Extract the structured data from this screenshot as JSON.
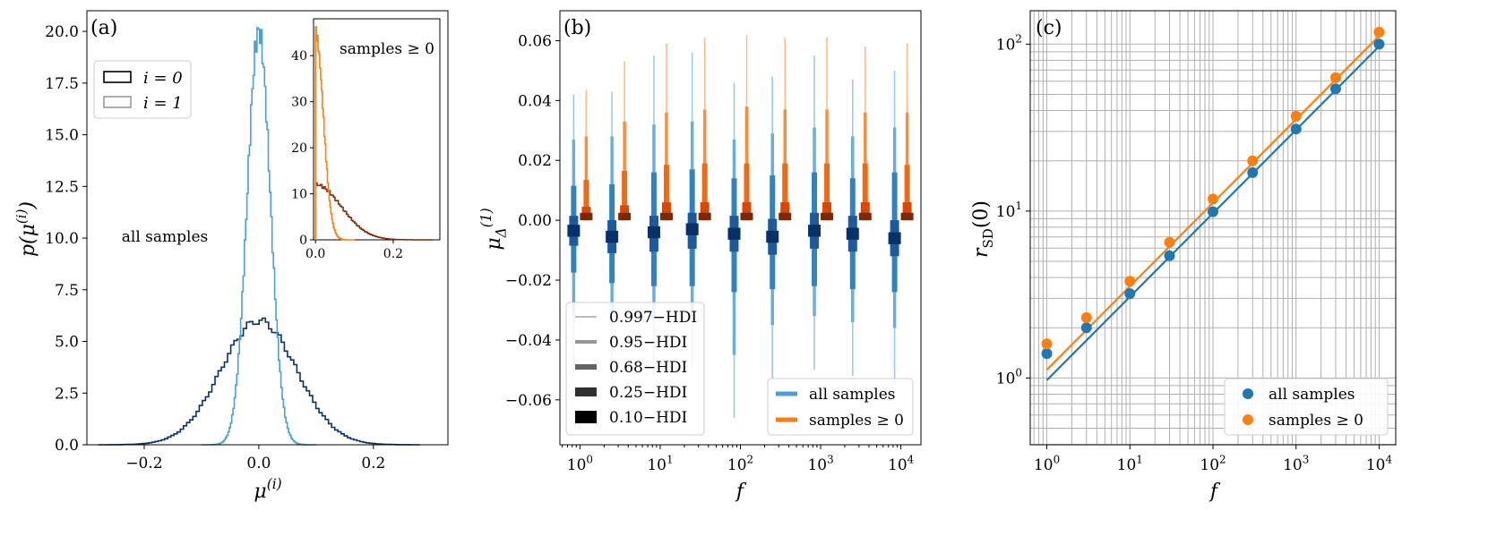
{
  "colors": {
    "all": "#1f77b4",
    "all_light": "#4a9fd4",
    "nonneg": "#ff7f0e",
    "nonneg_i0": "#7f2704",
    "navy": "#08306b",
    "grid": "#b0b0b0"
  },
  "chart_data": [
    {
      "type": "histogram",
      "panel": "(a)",
      "xlabel": "μ(i)",
      "ylabel": "p(μ(i))",
      "xlim": [
        -0.3,
        0.33
      ],
      "ylim": [
        0,
        21
      ],
      "xticks": [
        "−0.2",
        "0.0",
        "0.2"
      ],
      "xtick_values": [
        -0.2,
        0.0,
        0.2
      ],
      "yticks": [
        "0.0",
        "2.5",
        "5.0",
        "7.5",
        "10.0",
        "12.5",
        "15.0",
        "17.5",
        "20.0"
      ],
      "ytick_values": [
        0,
        2.5,
        5,
        7.5,
        10,
        12.5,
        15,
        17.5,
        20
      ],
      "annotation": "all samples",
      "legend": {
        "entries": [
          "i = 0",
          "i = 1"
        ],
        "placement": "upper-left"
      },
      "series": [
        {
          "name": "i = 0",
          "distribution": "normal",
          "mean": 0.0,
          "sd": 0.066,
          "peak": 6.0
        },
        {
          "name": "i = 1",
          "distribution": "normal",
          "mean": 0.0,
          "sd": 0.02,
          "peak": 20.0
        }
      ],
      "inset": {
        "title": "samples ≥ 0",
        "xlim": [
          -0.005,
          0.32
        ],
        "ylim": [
          0,
          48
        ],
        "xticks": [
          "0.0",
          "0.2"
        ],
        "xtick_values": [
          0.0,
          0.2
        ],
        "yticks": [
          "0",
          "10",
          "20",
          "30",
          "40"
        ],
        "ytick_values": [
          0,
          10,
          20,
          30,
          40
        ],
        "series": [
          {
            "name": "i = 0",
            "distribution": "half-normal",
            "sd": 0.066,
            "peak": 12.0
          },
          {
            "name": "i = 1",
            "distribution": "half-normal",
            "sd": 0.02,
            "peak": 45.0
          }
        ]
      }
    },
    {
      "type": "interval",
      "panel": "(b)",
      "xlabel": "f",
      "ylabel": "μΔ(1)",
      "xscale": "log",
      "xlim_log10": [
        -0.25,
        4.25
      ],
      "ylim": [
        -0.075,
        0.07
      ],
      "xticks": [
        {
          "base": "10",
          "exp": "0",
          "log": 0
        },
        {
          "base": "10",
          "exp": "1",
          "log": 1
        },
        {
          "base": "10",
          "exp": "2",
          "log": 2
        },
        {
          "base": "10",
          "exp": "3",
          "log": 3
        },
        {
          "base": "10",
          "exp": "4",
          "log": 4
        }
      ],
      "yticks": [
        "−0.06",
        "−0.04",
        "−0.02",
        "0.00",
        "0.02",
        "0.04",
        "0.06"
      ],
      "ytick_values": [
        -0.06,
        -0.04,
        -0.02,
        0.0,
        0.02,
        0.04,
        0.06
      ],
      "f": [
        1,
        3,
        10,
        30,
        100,
        300,
        1000,
        3000,
        10000
      ],
      "hdi_levels": [
        "0.997−HDI",
        "0.95−HDI",
        "0.68−HDI",
        "0.25−HDI",
        "0.10−HDI"
      ],
      "series": [
        {
          "name": "all samples",
          "center": [
            -0.0035,
            -0.0055,
            -0.004,
            -0.003,
            -0.0045,
            -0.0055,
            -0.0035,
            -0.0045,
            -0.006
          ],
          "hdi997": [
            [
              -0.0505,
              0.042
            ],
            [
              -0.053,
              0.043
            ],
            [
              -0.052,
              0.055
            ],
            [
              -0.05,
              0.056
            ],
            [
              -0.066,
              0.046
            ],
            [
              -0.053,
              0.048
            ],
            [
              -0.05,
              0.055
            ],
            [
              -0.052,
              0.047
            ],
            [
              -0.055,
              0.05
            ]
          ],
          "hdi95": [
            [
              -0.032,
              0.027
            ],
            [
              -0.034,
              0.028
            ],
            [
              -0.033,
              0.032
            ],
            [
              -0.033,
              0.033
            ],
            [
              -0.045,
              0.027
            ],
            [
              -0.035,
              0.029
            ],
            [
              -0.032,
              0.031
            ],
            [
              -0.034,
              0.028
            ],
            [
              -0.036,
              0.031
            ]
          ],
          "hdi68": [
            [
              -0.0175,
              0.0115
            ],
            [
              -0.021,
              0.012
            ],
            [
              -0.022,
              0.016
            ],
            [
              -0.022,
              0.017
            ],
            [
              -0.024,
              0.014
            ],
            [
              -0.023,
              0.015
            ],
            [
              -0.022,
              0.016
            ],
            [
              -0.023,
              0.014
            ],
            [
              -0.024,
              0.016
            ]
          ],
          "hdi25": [
            [
              -0.0085,
              0.0015
            ],
            [
              -0.011,
              0.0
            ],
            [
              -0.0105,
              0.0015
            ],
            [
              -0.0095,
              0.0025
            ],
            [
              -0.0105,
              0.0015
            ],
            [
              -0.0115,
              0.0005
            ],
            [
              -0.0095,
              0.0025
            ],
            [
              -0.0105,
              0.0015
            ],
            [
              -0.012,
              0.0
            ]
          ],
          "hdi10": [
            [
              -0.0055,
              -0.0015
            ],
            [
              -0.0075,
              -0.0035
            ],
            [
              -0.006,
              -0.002
            ],
            [
              -0.005,
              -0.001
            ],
            [
              -0.0065,
              -0.0025
            ],
            [
              -0.0075,
              -0.0035
            ],
            [
              -0.0055,
              -0.0015
            ],
            [
              -0.0065,
              -0.0025
            ],
            [
              -0.008,
              -0.004
            ]
          ]
        },
        {
          "name": "samples ≥ 0",
          "center": [
            0.001,
            0.001,
            0.001,
            0.001,
            0.001,
            0.001,
            0.001,
            0.001,
            0.001
          ],
          "hdi997": [
            [
              0.0,
              0.0435
            ],
            [
              0.0,
              0.053
            ],
            [
              0.0,
              0.059
            ],
            [
              0.0,
              0.061
            ],
            [
              0.0,
              0.062
            ],
            [
              0.0,
              0.061
            ],
            [
              0.0,
              0.061
            ],
            [
              0.0,
              0.058
            ],
            [
              0.0,
              0.059
            ]
          ],
          "hdi95": [
            [
              0.0,
              0.028
            ],
            [
              0.0,
              0.033
            ],
            [
              0.0,
              0.036
            ],
            [
              0.0,
              0.037
            ],
            [
              0.0,
              0.038
            ],
            [
              0.0,
              0.037
            ],
            [
              0.0,
              0.037
            ],
            [
              0.0,
              0.036
            ],
            [
              0.0,
              0.036
            ]
          ],
          "hdi68": [
            [
              0.0,
              0.0135
            ],
            [
              0.0,
              0.0165
            ],
            [
              0.0,
              0.0185
            ],
            [
              0.0,
              0.019
            ],
            [
              0.0,
              0.019
            ],
            [
              0.0,
              0.019
            ],
            [
              0.0,
              0.019
            ],
            [
              0.0,
              0.019
            ],
            [
              0.0,
              0.0185
            ]
          ],
          "hdi25": [
            [
              0.0,
              0.0045
            ],
            [
              0.0,
              0.005
            ],
            [
              0.0,
              0.006
            ],
            [
              0.0,
              0.006
            ],
            [
              0.0,
              0.006
            ],
            [
              0.0,
              0.006
            ],
            [
              0.0,
              0.006
            ],
            [
              0.0,
              0.006
            ],
            [
              0.0,
              0.006
            ]
          ],
          "hdi10": [
            [
              0.0,
              0.0025
            ],
            [
              0.0,
              0.0025
            ],
            [
              0.0,
              0.0025
            ],
            [
              0.0,
              0.0025
            ],
            [
              0.0,
              0.0025
            ],
            [
              0.0,
              0.0025
            ],
            [
              0.0,
              0.0025
            ],
            [
              0.0,
              0.0025
            ],
            [
              0.0,
              0.0025
            ]
          ]
        }
      ],
      "legend": {
        "entries": [
          "all samples",
          "samples ≥ 0"
        ],
        "placement": "lower-right"
      }
    },
    {
      "type": "scatter",
      "panel": "(c)",
      "xlabel": "f",
      "ylabel": "rSD(0)",
      "xscale": "log",
      "yscale": "log",
      "grid": true,
      "xlim_log10": [
        -0.2,
        4.2
      ],
      "ylim_log10": [
        -0.4,
        2.2
      ],
      "xticks": [
        {
          "base": "10",
          "exp": "0",
          "log": 0
        },
        {
          "base": "10",
          "exp": "1",
          "log": 1
        },
        {
          "base": "10",
          "exp": "2",
          "log": 2
        },
        {
          "base": "10",
          "exp": "3",
          "log": 3
        },
        {
          "base": "10",
          "exp": "4",
          "log": 4
        }
      ],
      "yticks": [
        {
          "base": "10",
          "exp": "0",
          "log": 0
        },
        {
          "base": "10",
          "exp": "1",
          "log": 1
        },
        {
          "base": "10",
          "exp": "2",
          "log": 2
        }
      ],
      "x": [
        1,
        3,
        10,
        30,
        100,
        300,
        1000,
        3000,
        10000
      ],
      "series": [
        {
          "name": "all samples",
          "values": [
            1.4,
            2.0,
            3.2,
            5.4,
            9.9,
            17.0,
            31.0,
            54.0,
            100.0
          ],
          "fit": [
            0.97,
            97.0
          ]
        },
        {
          "name": "samples ≥ 0",
          "values": [
            1.6,
            2.3,
            3.8,
            6.5,
            11.8,
            20.0,
            37.0,
            63.0,
            118.0
          ],
          "fit": [
            1.12,
            112.0
          ]
        }
      ],
      "legend": {
        "entries": [
          "all samples",
          "samples ≥ 0"
        ],
        "placement": "lower-right"
      }
    }
  ]
}
